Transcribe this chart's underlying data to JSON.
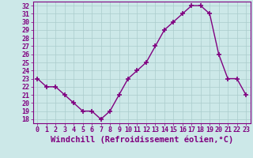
{
  "x": [
    0,
    1,
    2,
    3,
    4,
    5,
    6,
    7,
    8,
    9,
    10,
    11,
    12,
    13,
    14,
    15,
    16,
    17,
    18,
    19,
    20,
    21,
    22,
    23
  ],
  "y": [
    23,
    22,
    22,
    21,
    20,
    19,
    19,
    18,
    19,
    21,
    23,
    24,
    25,
    27,
    29,
    30,
    31,
    32,
    32,
    31,
    26,
    23,
    23,
    21
  ],
  "line_color": "#800080",
  "marker": "+",
  "marker_size": 4,
  "marker_edge_width": 1.2,
  "background_color": "#cce8e8",
  "grid_color": "#aacccc",
  "xlabel": "Windchill (Refroidissement éolien,°C)",
  "xlabel_fontsize": 7.5,
  "ylim": [
    17.5,
    32.5
  ],
  "xlim": [
    -0.5,
    23.5
  ],
  "yticks": [
    18,
    19,
    20,
    21,
    22,
    23,
    24,
    25,
    26,
    27,
    28,
    29,
    30,
    31,
    32
  ],
  "xticks": [
    0,
    1,
    2,
    3,
    4,
    5,
    6,
    7,
    8,
    9,
    10,
    11,
    12,
    13,
    14,
    15,
    16,
    17,
    18,
    19,
    20,
    21,
    22,
    23
  ],
  "tick_fontsize": 6,
  "axis_color": "#800080",
  "line_width": 1.0
}
